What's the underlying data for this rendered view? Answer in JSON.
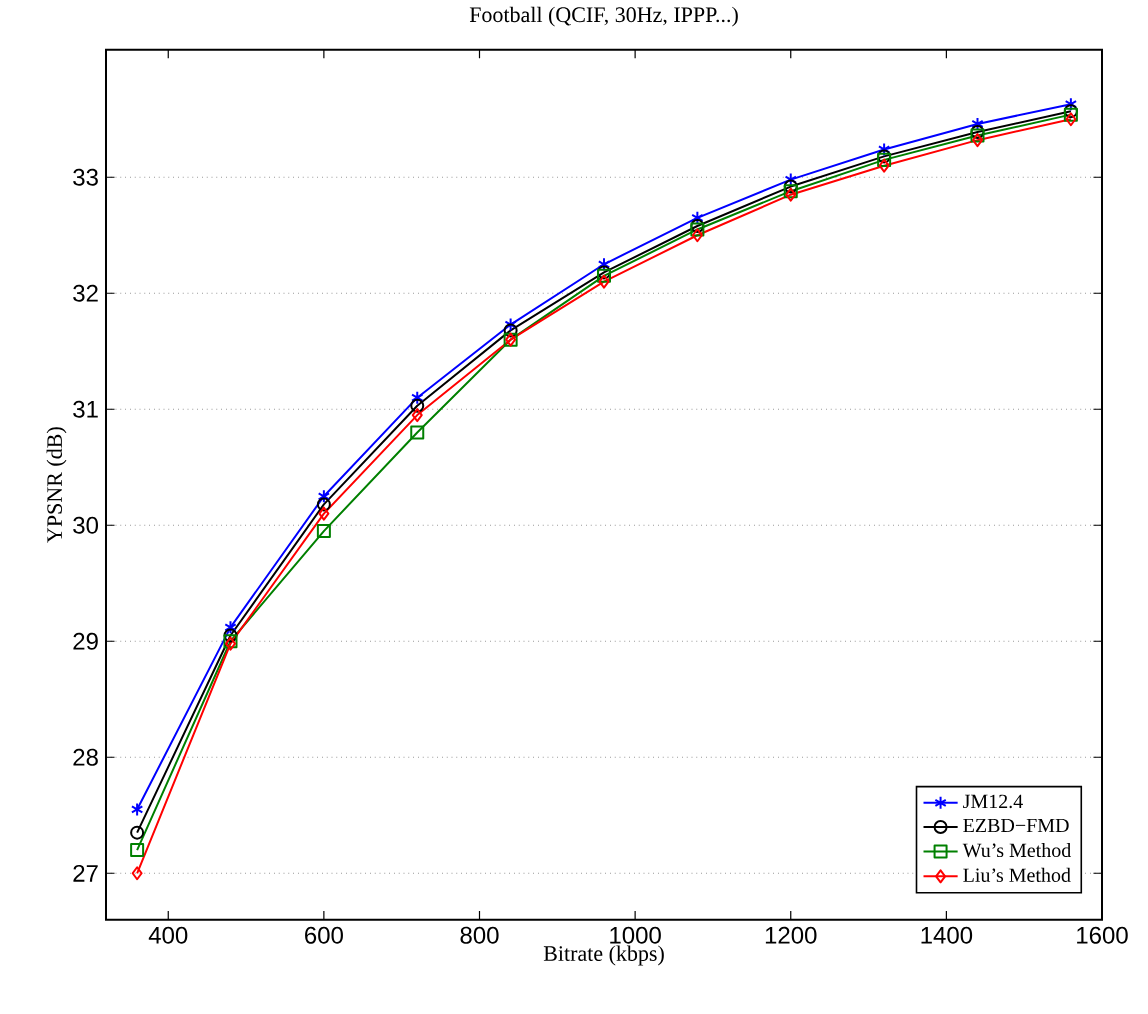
{
  "chart_data": {
    "type": "line",
    "title": "Football (QCIF, 30Hz, IPPP...)",
    "xlabel": "Bitrate (kbps)",
    "ylabel": "YPSNR (dB)",
    "x": [
      360,
      480,
      600,
      720,
      840,
      960,
      1080,
      1200,
      1320,
      1440,
      1560
    ],
    "series": [
      {
        "name": "JM12.4",
        "color": "#0000ff",
        "marker": "cross",
        "values": [
          27.55,
          29.12,
          30.25,
          31.1,
          31.73,
          32.25,
          32.65,
          32.98,
          33.24,
          33.46,
          33.63
        ]
      },
      {
        "name": "EZBD−FMD",
        "color": "#000000",
        "marker": "circle",
        "values": [
          27.35,
          29.05,
          30.18,
          31.03,
          31.68,
          32.18,
          32.58,
          32.92,
          33.18,
          33.39,
          33.57
        ]
      },
      {
        "name": "Wu’s Method",
        "color": "#008000",
        "marker": "square",
        "values": [
          27.2,
          29.0,
          29.95,
          30.8,
          31.6,
          32.15,
          32.55,
          32.88,
          33.15,
          33.36,
          33.54
        ]
      },
      {
        "name": "Liu’s Method",
        "color": "#ff0000",
        "marker": "diamond",
        "values": [
          27.0,
          28.98,
          30.1,
          30.95,
          31.6,
          32.1,
          32.5,
          32.85,
          33.1,
          33.32,
          33.5
        ]
      }
    ],
    "xlim": [
      320,
      1600
    ],
    "ylim": [
      26.6,
      34.1
    ],
    "xticks": [
      400,
      600,
      800,
      1000,
      1200,
      1400,
      1600
    ],
    "yticks": [
      27,
      28,
      29,
      30,
      31,
      32,
      33
    ],
    "grid": "y",
    "legend": "bottom right",
    "line_style": "solid"
  }
}
